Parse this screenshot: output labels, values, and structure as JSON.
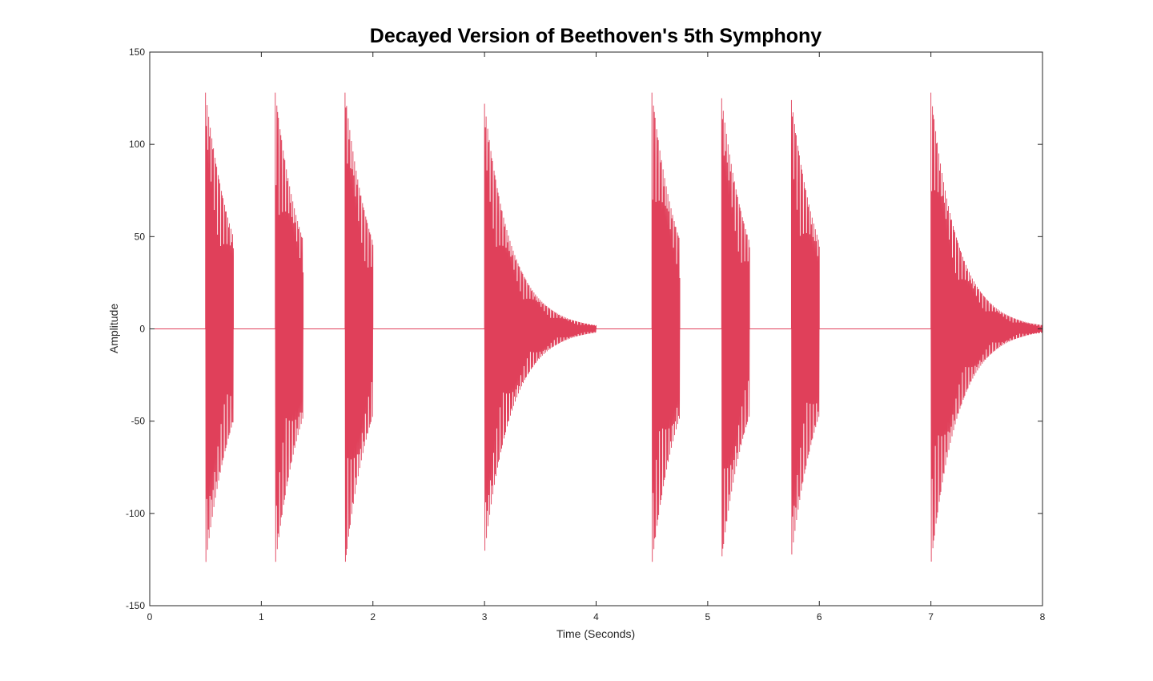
{
  "chart_data": {
    "type": "line",
    "title": "Decayed Version of Beethoven's 5th Symphony",
    "xlabel": "Time (Seconds)",
    "ylabel": "Amplitude",
    "xlim": [
      0,
      8
    ],
    "ylim": [
      -150,
      150
    ],
    "x_ticks": [
      "0",
      "1",
      "2",
      "3",
      "4",
      "5",
      "6",
      "7",
      "8"
    ],
    "y_ticks": [
      "-150",
      "-100",
      "-50",
      "0",
      "50",
      "100",
      "150"
    ],
    "grid": false,
    "legend": false,
    "line_color": "#e0405a",
    "series": [
      {
        "notes": [
          {
            "start": 0.5,
            "end": 0.75,
            "peak": 128,
            "end_amplitude": 50
          },
          {
            "start": 1.125,
            "end": 1.375,
            "peak": 128,
            "end_amplitude": 48
          },
          {
            "start": 1.75,
            "end": 2.0,
            "peak": 128,
            "end_amplitude": 47
          },
          {
            "start": 3.0,
            "end": 4.0,
            "peak": 122,
            "end_amplitude": 2
          },
          {
            "start": 4.5,
            "end": 4.75,
            "peak": 128,
            "end_amplitude": 48
          },
          {
            "start": 5.125,
            "end": 5.375,
            "peak": 125,
            "end_amplitude": 47
          },
          {
            "start": 5.75,
            "end": 6.0,
            "peak": 124,
            "end_amplitude": 47
          },
          {
            "start": 7.0,
            "end": 8.0,
            "peak": 128,
            "end_amplitude": 2
          }
        ]
      }
    ]
  }
}
